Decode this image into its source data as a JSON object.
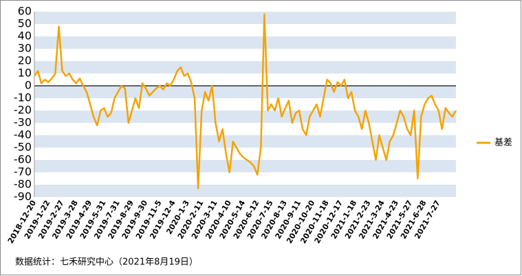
{
  "chart_data": {
    "type": "line",
    "source": "数据统计：七禾研究中心（2021年8月19日）",
    "categories": [
      "2018-12-20",
      null,
      null,
      null,
      "2019-1-22",
      null,
      null,
      null,
      "2019-2-27",
      null,
      null,
      null,
      "2019-3-28",
      null,
      null,
      null,
      "2019-4-29",
      null,
      null,
      null,
      "2019-5-31",
      null,
      null,
      null,
      "2019-7-31",
      null,
      null,
      null,
      "2019-8-29",
      null,
      null,
      null,
      "2019-9-30",
      null,
      null,
      null,
      "2019-11-5",
      null,
      null,
      null,
      "2019-12-4",
      null,
      null,
      null,
      "2020-1-3",
      null,
      null,
      null,
      "2020-2-11",
      null,
      null,
      null,
      "2020-3-11",
      null,
      null,
      null,
      "2020-4-10",
      null,
      null,
      null,
      "2020-5-14",
      null,
      null,
      null,
      "2020-6-12",
      null,
      null,
      null,
      "2020-7-15",
      null,
      null,
      null,
      "2020-8-13",
      null,
      null,
      null,
      "2020-9-11",
      null,
      null,
      null,
      "2020-10-20",
      null,
      null,
      null,
      "2020-11-18",
      null,
      null,
      null,
      "2020-12-17",
      null,
      null,
      null,
      "2021-1-18",
      null,
      null,
      null,
      "2021-2-23",
      null,
      null,
      null,
      "2021-3-24",
      null,
      null,
      null,
      "2021-4-23",
      null,
      null,
      null,
      "2021-5-27",
      null,
      null,
      null,
      "2021-6-28",
      null,
      null,
      null,
      "2021-7-27",
      null,
      null,
      null,
      null,
      null
    ],
    "series": [
      {
        "name": "基差",
        "color": "#f5a300",
        "values": [
          8,
          12,
          2,
          5,
          3,
          6,
          10,
          48,
          12,
          8,
          10,
          5,
          2,
          6,
          0,
          -5,
          -15,
          -25,
          -32,
          -20,
          -18,
          -25,
          -22,
          -10,
          -5,
          0,
          -2,
          -30,
          -20,
          -10,
          -18,
          2,
          -2,
          -8,
          -5,
          -2,
          0,
          -3,
          2,
          0,
          5,
          12,
          15,
          8,
          10,
          3,
          -10,
          -83,
          -20,
          -5,
          -12,
          0,
          -30,
          -45,
          -35,
          -55,
          -70,
          -45,
          -50,
          -55,
          -58,
          -60,
          -62,
          -65,
          -72,
          -50,
          58,
          -20,
          -15,
          -20,
          -10,
          -25,
          -18,
          -12,
          -30,
          -22,
          -20,
          -35,
          -40,
          -25,
          -20,
          -15,
          -25,
          -10,
          5,
          2,
          -5,
          3,
          0,
          5,
          -10,
          -5,
          -20,
          -25,
          -35,
          -20,
          -30,
          -45,
          -60,
          -40,
          -50,
          -60,
          -45,
          -40,
          -30,
          -20,
          -25,
          -35,
          -40,
          -20,
          -75,
          -25,
          -15,
          -10,
          -8,
          -15,
          -20,
          -35,
          -18,
          -22,
          -25,
          -20
        ]
      }
    ],
    "ylim": [
      -90,
      60
    ],
    "yticks": [
      60,
      50,
      40,
      30,
      20,
      10,
      0,
      -10,
      -20,
      -30,
      -40,
      -50,
      -60,
      -70,
      -80,
      -90
    ],
    "band_color": "#dbe5f1",
    "legend": "right"
  }
}
